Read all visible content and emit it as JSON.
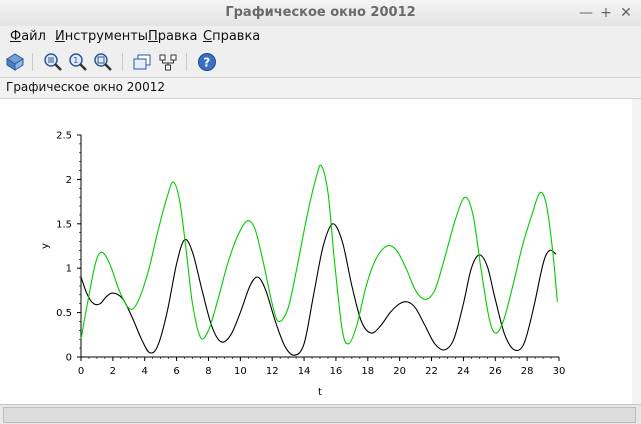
{
  "window": {
    "title": "Графическое окно 20012"
  },
  "menu": {
    "items": [
      "Файл",
      "Инструменты",
      "Правка",
      "Справка"
    ],
    "underline_first": true
  },
  "toolbar": {
    "icons": [
      "rotate-view-icon",
      "zoom-region-icon",
      "zoom-reset-icon",
      "zoom-axes-icon",
      "datatip-icon",
      "editor-icon",
      "help-icon"
    ]
  },
  "infobar": {
    "text": "Графическое окно 20012"
  },
  "colors": {
    "series_black": "#000000",
    "series_green": "#00cc00",
    "accent": "#3a6fc4"
  },
  "chart_data": {
    "type": "line",
    "xlabel": "t",
    "ylabel": "y",
    "xlim": [
      0,
      30
    ],
    "ylim": [
      0,
      2.5
    ],
    "xticks": [
      "0",
      "2",
      "4",
      "6",
      "8",
      "10",
      "12",
      "14",
      "16",
      "18",
      "20",
      "22",
      "24",
      "26",
      "28",
      "30"
    ],
    "yticks": [
      "0",
      "0.5",
      "1",
      "1.5",
      "2",
      "2.5"
    ],
    "grid": false,
    "legend": "none",
    "series": [
      {
        "color": "#000000",
        "points": [
          [
            0,
            0.9
          ],
          [
            0.4,
            0.7
          ],
          [
            0.8,
            0.6
          ],
          [
            1.2,
            0.6
          ],
          [
            1.6,
            0.68
          ],
          [
            2,
            0.72
          ],
          [
            2.6,
            0.66
          ],
          [
            3.2,
            0.45
          ],
          [
            3.8,
            0.2
          ],
          [
            4.3,
            0.05
          ],
          [
            4.8,
            0.12
          ],
          [
            5.4,
            0.5
          ],
          [
            6,
            1.05
          ],
          [
            6.5,
            1.32
          ],
          [
            7,
            1.18
          ],
          [
            7.6,
            0.75
          ],
          [
            8.2,
            0.35
          ],
          [
            8.8,
            0.17
          ],
          [
            9.4,
            0.25
          ],
          [
            10,
            0.5
          ],
          [
            10.6,
            0.8
          ],
          [
            11.1,
            0.9
          ],
          [
            11.6,
            0.75
          ],
          [
            12.2,
            0.4
          ],
          [
            12.8,
            0.12
          ],
          [
            13.4,
            0.02
          ],
          [
            14,
            0.15
          ],
          [
            14.6,
            0.7
          ],
          [
            15.2,
            1.25
          ],
          [
            15.8,
            1.5
          ],
          [
            16.4,
            1.3
          ],
          [
            17,
            0.8
          ],
          [
            17.6,
            0.4
          ],
          [
            18.2,
            0.27
          ],
          [
            18.8,
            0.35
          ],
          [
            19.4,
            0.5
          ],
          [
            20,
            0.6
          ],
          [
            20.5,
            0.62
          ],
          [
            21,
            0.55
          ],
          [
            21.6,
            0.35
          ],
          [
            22.2,
            0.15
          ],
          [
            22.8,
            0.08
          ],
          [
            23.4,
            0.2
          ],
          [
            24,
            0.6
          ],
          [
            24.5,
            1.0
          ],
          [
            25,
            1.15
          ],
          [
            25.5,
            1.02
          ],
          [
            26,
            0.65
          ],
          [
            26.6,
            0.25
          ],
          [
            27.2,
            0.08
          ],
          [
            27.8,
            0.15
          ],
          [
            28.4,
            0.55
          ],
          [
            29,
            1.05
          ],
          [
            29.4,
            1.2
          ],
          [
            29.8,
            1.16
          ]
        ]
      },
      {
        "color": "#00cc00",
        "points": [
          [
            0,
            0.2
          ],
          [
            0.4,
            0.6
          ],
          [
            0.9,
            1.05
          ],
          [
            1.3,
            1.18
          ],
          [
            1.8,
            1.05
          ],
          [
            2.4,
            0.75
          ],
          [
            3,
            0.55
          ],
          [
            3.5,
            0.6
          ],
          [
            4.2,
            0.95
          ],
          [
            4.8,
            1.4
          ],
          [
            5.4,
            1.8
          ],
          [
            5.8,
            1.97
          ],
          [
            6.2,
            1.75
          ],
          [
            6.6,
            1.2
          ],
          [
            7,
            0.6
          ],
          [
            7.5,
            0.22
          ],
          [
            8,
            0.3
          ],
          [
            8.6,
            0.65
          ],
          [
            9.2,
            1.05
          ],
          [
            9.8,
            1.35
          ],
          [
            10.4,
            1.53
          ],
          [
            10.9,
            1.45
          ],
          [
            11.4,
            1.1
          ],
          [
            12,
            0.6
          ],
          [
            12.4,
            0.4
          ],
          [
            13,
            0.55
          ],
          [
            13.6,
            1.05
          ],
          [
            14.2,
            1.6
          ],
          [
            14.8,
            2.05
          ],
          [
            15.1,
            2.15
          ],
          [
            15.5,
            1.85
          ],
          [
            15.9,
            1.1
          ],
          [
            16.4,
            0.3
          ],
          [
            16.8,
            0.15
          ],
          [
            17.3,
            0.35
          ],
          [
            17.9,
            0.8
          ],
          [
            18.5,
            1.1
          ],
          [
            19.2,
            1.25
          ],
          [
            19.8,
            1.2
          ],
          [
            20.4,
            1.0
          ],
          [
            21,
            0.75
          ],
          [
            21.6,
            0.65
          ],
          [
            22.2,
            0.75
          ],
          [
            22.8,
            1.1
          ],
          [
            23.5,
            1.55
          ],
          [
            24.1,
            1.8
          ],
          [
            24.6,
            1.6
          ],
          [
            25.1,
            1.0
          ],
          [
            25.6,
            0.45
          ],
          [
            26,
            0.27
          ],
          [
            26.5,
            0.4
          ],
          [
            27.1,
            0.8
          ],
          [
            27.7,
            1.25
          ],
          [
            28.3,
            1.6
          ],
          [
            28.8,
            1.85
          ],
          [
            29.2,
            1.72
          ],
          [
            29.6,
            1.2
          ],
          [
            29.9,
            0.62
          ]
        ]
      }
    ]
  }
}
